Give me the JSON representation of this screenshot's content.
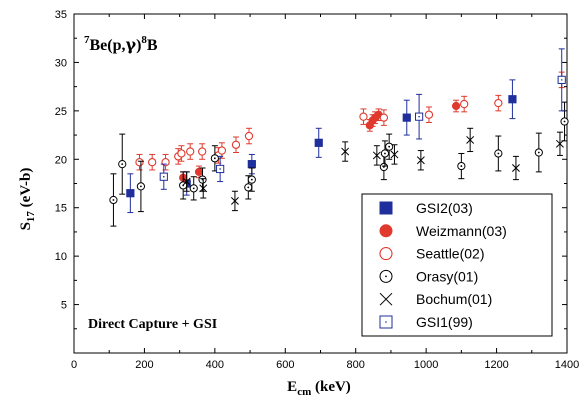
{
  "chart_data": {
    "type": "scatter",
    "title": "",
    "annotations": {
      "reaction": {
        "pre1": "7",
        "mid1": "Be(p,",
        "gamma": "γ",
        "mid2": ")",
        "pre2": "8",
        "end": "B"
      },
      "label": "Direct Capture + GSI"
    },
    "xlabel": {
      "main": "E",
      "sub": "cm",
      "unit": " (keV)"
    },
    "ylabel": {
      "main": "S",
      "sub": "17",
      "unit": " (eV-b)"
    },
    "xlim": [
      0,
      1400
    ],
    "ylim": [
      0,
      35
    ],
    "xticks": [
      "0",
      "200",
      "400",
      "600",
      "800",
      "1000",
      "1200",
      "1400"
    ],
    "yticks": [
      "5",
      "10",
      "15",
      "20",
      "25",
      "30",
      "35"
    ],
    "grid": false,
    "legend_position": "bottom-right",
    "series": [
      {
        "name": "GSI2(03)",
        "marker": "filled-square",
        "color": "#1f2f9c",
        "points": [
          {
            "x": 160,
            "y": 16.5,
            "err": 2.0
          },
          {
            "x": 320,
            "y": 17.5,
            "err": 1.2
          },
          {
            "x": 505,
            "y": 19.5,
            "err": 1.0
          },
          {
            "x": 695,
            "y": 21.7,
            "err": 1.5
          },
          {
            "x": 945,
            "y": 24.3,
            "err": 1.8
          },
          {
            "x": 1245,
            "y": 26.2,
            "err": 2.0
          }
        ]
      },
      {
        "name": "Weizmann(03)",
        "marker": "filled-circle",
        "color": "#e03a2e",
        "points": [
          {
            "x": 310,
            "y": 18.1,
            "err": 0.6
          },
          {
            "x": 355,
            "y": 18.7,
            "err": 0.6
          },
          {
            "x": 840,
            "y": 23.5,
            "err": 0.6
          },
          {
            "x": 848,
            "y": 24.0,
            "err": 0.6
          },
          {
            "x": 855,
            "y": 24.3,
            "err": 0.6
          },
          {
            "x": 865,
            "y": 24.6,
            "err": 0.6
          },
          {
            "x": 1085,
            "y": 25.5,
            "err": 0.6
          }
        ]
      },
      {
        "name": "Seattle(02)",
        "marker": "open-circle",
        "color": "#e03a2e",
        "points": [
          {
            "x": 186,
            "y": 19.7,
            "err": 0.8
          },
          {
            "x": 222,
            "y": 19.7,
            "err": 0.8
          },
          {
            "x": 260,
            "y": 19.7,
            "err": 0.8
          },
          {
            "x": 296,
            "y": 20.3,
            "err": 0.8
          },
          {
            "x": 305,
            "y": 20.6,
            "err": 0.8
          },
          {
            "x": 330,
            "y": 20.8,
            "err": 0.8
          },
          {
            "x": 364,
            "y": 20.8,
            "err": 0.8
          },
          {
            "x": 410,
            "y": 20.4,
            "err": 0.8
          },
          {
            "x": 420,
            "y": 20.9,
            "err": 0.8
          },
          {
            "x": 460,
            "y": 21.5,
            "err": 0.8
          },
          {
            "x": 497,
            "y": 22.4,
            "err": 0.8
          },
          {
            "x": 822,
            "y": 24.4,
            "err": 0.8
          },
          {
            "x": 880,
            "y": 24.3,
            "err": 0.8
          },
          {
            "x": 1008,
            "y": 24.6,
            "err": 0.8
          },
          {
            "x": 1108,
            "y": 25.7,
            "err": 0.8
          },
          {
            "x": 1205,
            "y": 25.8,
            "err": 0.8
          },
          {
            "x": 1385,
            "y": 28.2,
            "err": 0.8
          }
        ]
      },
      {
        "name": "Orasy(01)",
        "marker": "dot-circle",
        "color": "#000000",
        "points": [
          {
            "x": 112,
            "y": 15.8,
            "err": 2.7
          },
          {
            "x": 137,
            "y": 19.5,
            "err": 3.1
          },
          {
            "x": 190,
            "y": 17.2,
            "err": 2.6
          },
          {
            "x": 310,
            "y": 17.3,
            "err": 1.4
          },
          {
            "x": 340,
            "y": 17.0,
            "err": 1.2
          },
          {
            "x": 365,
            "y": 17.9,
            "err": 1.2
          },
          {
            "x": 400,
            "y": 20.1,
            "err": 1.3
          },
          {
            "x": 495,
            "y": 17.1,
            "err": 1.2
          },
          {
            "x": 505,
            "y": 17.9,
            "err": 1.2
          },
          {
            "x": 880,
            "y": 19.2,
            "err": 1.3
          },
          {
            "x": 883,
            "y": 20.6,
            "err": 1.3
          },
          {
            "x": 895,
            "y": 21.3,
            "err": 1.3
          },
          {
            "x": 1100,
            "y": 19.3,
            "err": 1.3
          },
          {
            "x": 1205,
            "y": 20.6,
            "err": 1.8
          },
          {
            "x": 1320,
            "y": 20.7,
            "err": 2.0
          },
          {
            "x": 1393,
            "y": 23.9,
            "err": 2.0
          }
        ]
      },
      {
        "name": "Bochum(01)",
        "marker": "cross",
        "color": "#000000",
        "points": [
          {
            "x": 320,
            "y": 17.7,
            "err": 1.0
          },
          {
            "x": 367,
            "y": 17.0,
            "err": 1.0
          },
          {
            "x": 457,
            "y": 15.7,
            "err": 1.0
          },
          {
            "x": 770,
            "y": 20.8,
            "err": 1.0
          },
          {
            "x": 860,
            "y": 20.4,
            "err": 1.0
          },
          {
            "x": 910,
            "y": 20.5,
            "err": 1.0
          },
          {
            "x": 985,
            "y": 19.9,
            "err": 1.0
          },
          {
            "x": 1125,
            "y": 22.0,
            "err": 1.2
          },
          {
            "x": 1255,
            "y": 19.1,
            "err": 1.2
          },
          {
            "x": 1380,
            "y": 21.6,
            "err": 1.2
          }
        ]
      },
      {
        "name": "GSI1(99)",
        "marker": "open-square",
        "color": "#1f2f9c",
        "points": [
          {
            "x": 255,
            "y": 18.2,
            "err": 1.3
          },
          {
            "x": 415,
            "y": 19.0,
            "err": 1.3
          },
          {
            "x": 980,
            "y": 24.4,
            "err": 2.3
          },
          {
            "x": 1385,
            "y": 28.2,
            "err": 3.2
          }
        ]
      }
    ]
  }
}
